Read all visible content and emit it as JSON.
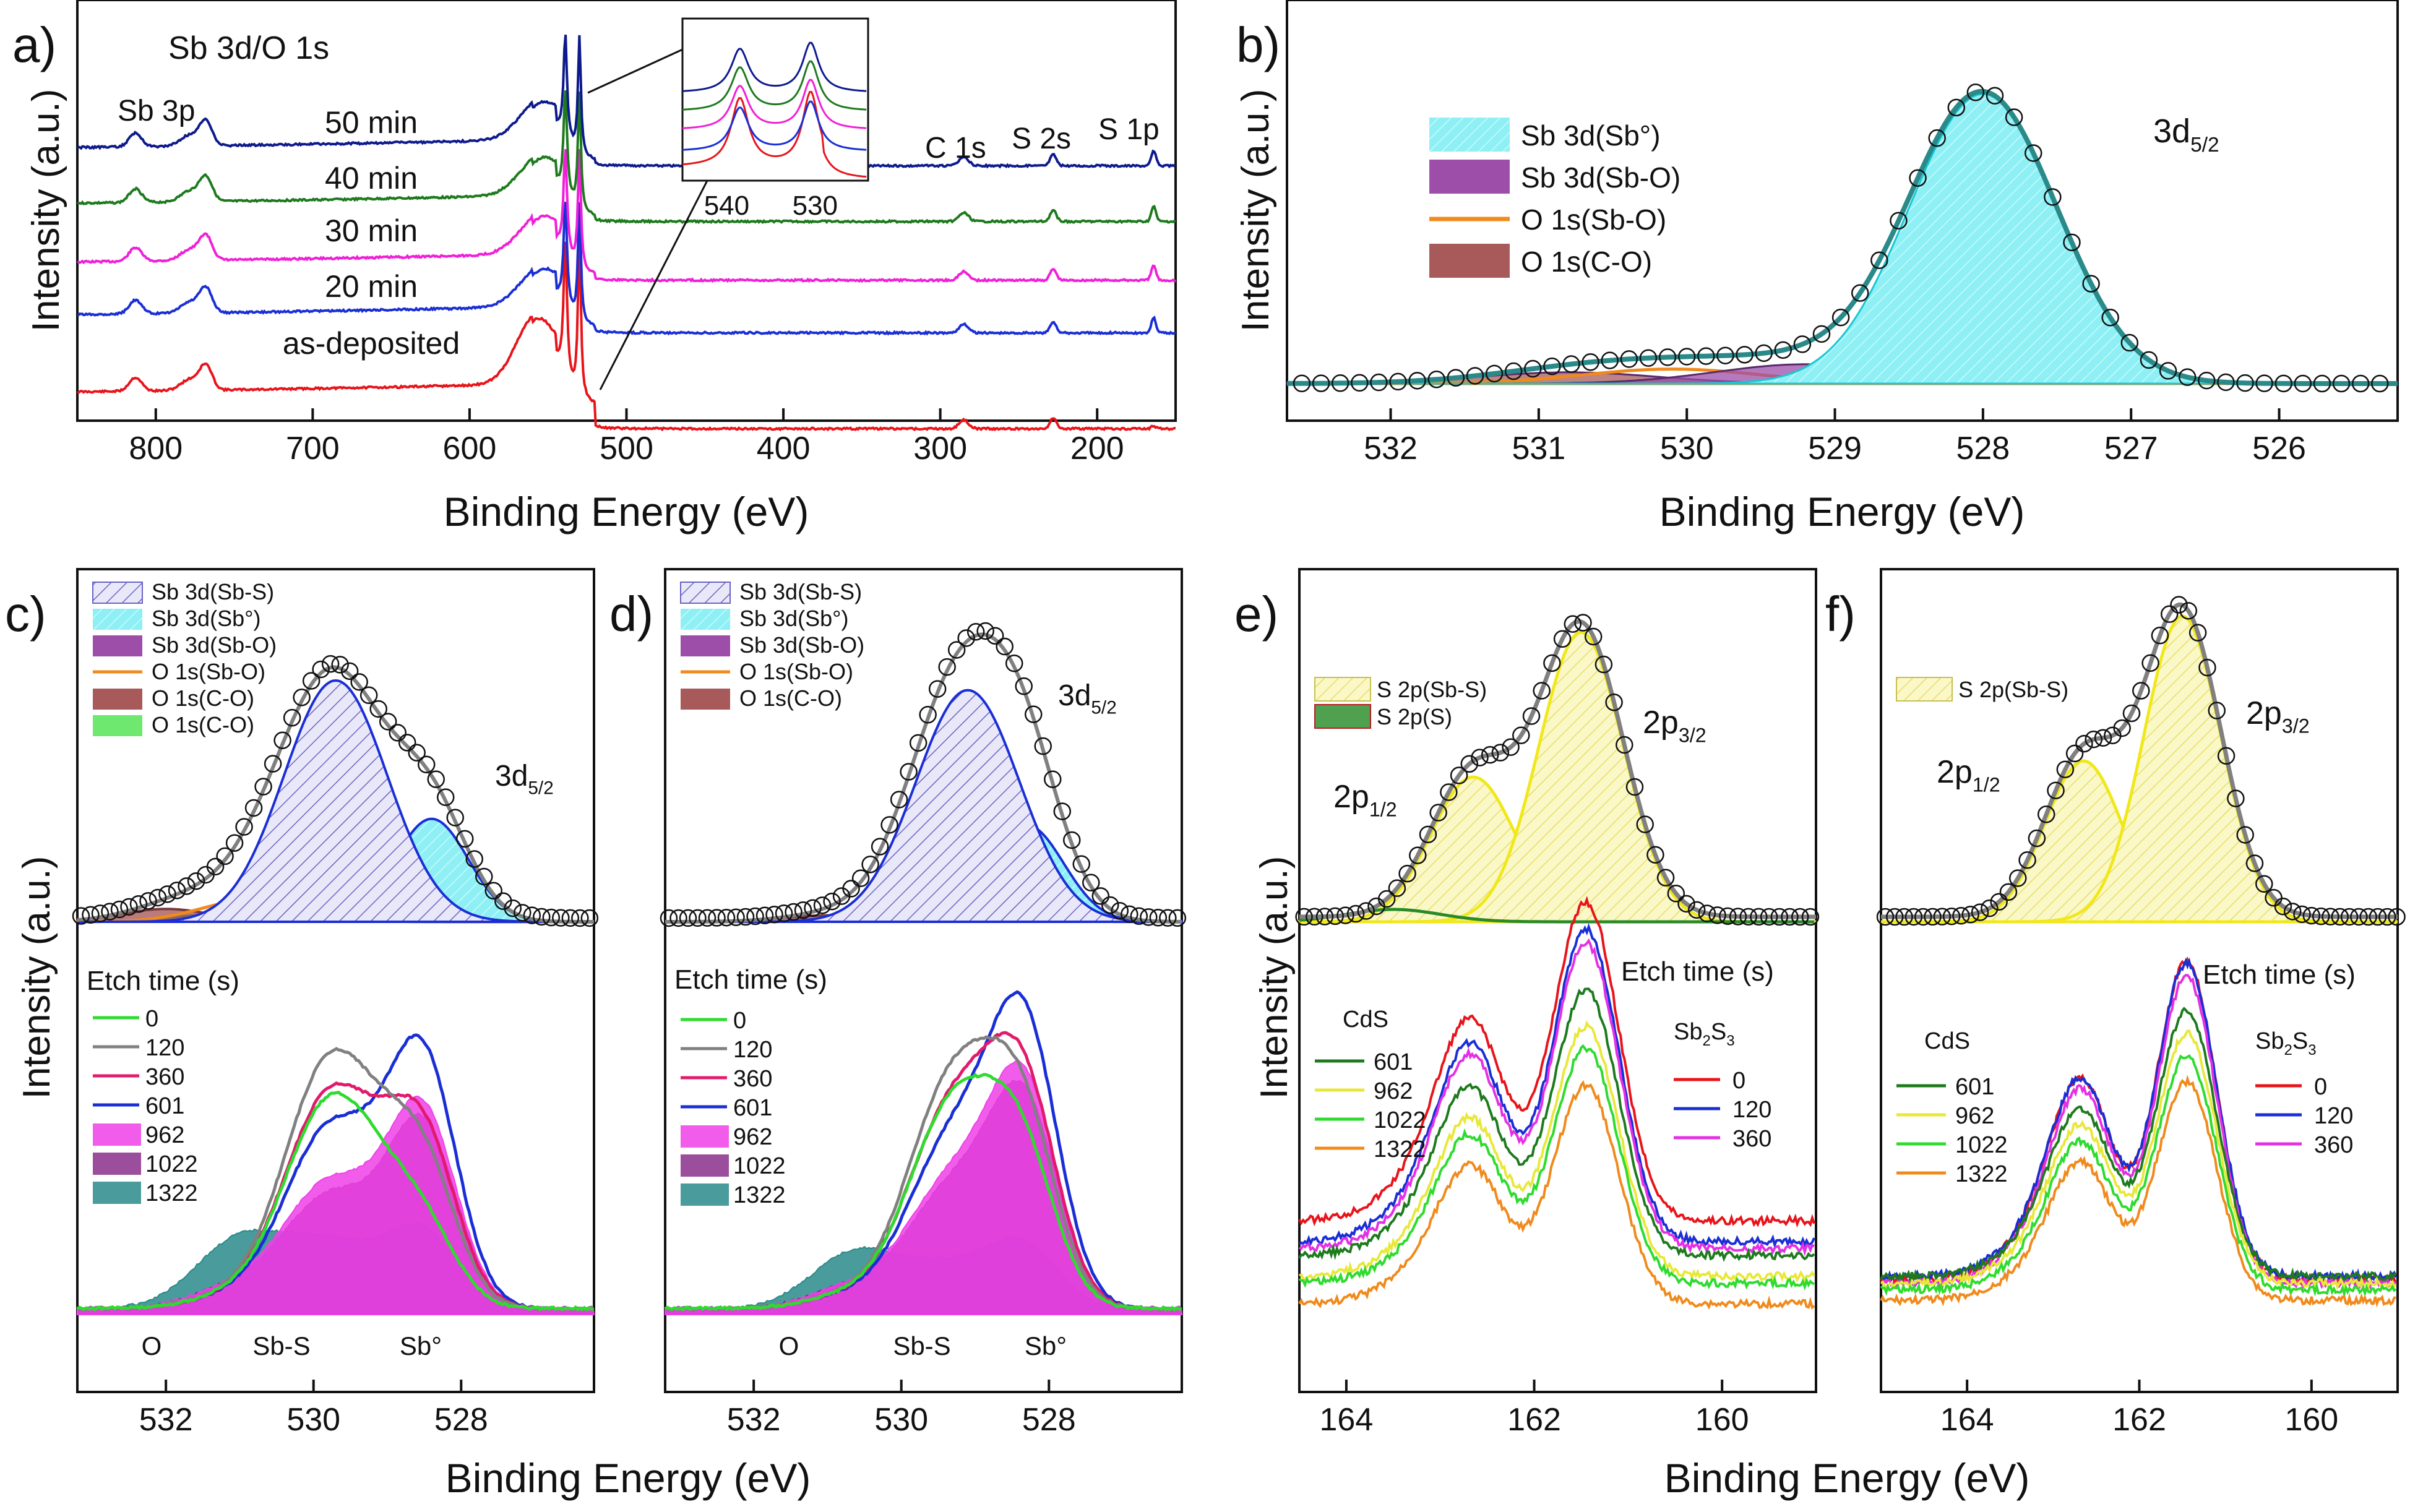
{
  "figure": {
    "common_xlabel": "Binding Energy (eV)",
    "common_ylabel": "Intensity (a.u.)"
  },
  "chart_data": [
    {
      "panel": "a)",
      "type": "line",
      "title": "Sb 3d/O 1s",
      "xlabel": "Binding Energy (eV)",
      "ylabel": "Intensity (a.u.)",
      "xlim": [
        850,
        150
      ],
      "xticks": [
        800,
        700,
        600,
        500,
        400,
        300,
        200
      ],
      "series": [
        {
          "name": "as-deposited",
          "color": "#e8141a",
          "offset": 0,
          "sharp": 0.5
        },
        {
          "name": "20 min",
          "color": "#1a2ed6",
          "offset": 1.3,
          "sharp": 0.3
        },
        {
          "name": "30 min",
          "color": "#f01fd8",
          "offset": 2.4,
          "sharp": 0.4
        },
        {
          "name": "40 min",
          "color": "#1d7a1d",
          "offset": 3.6,
          "sharp": 0.5
        },
        {
          "name": "50 min",
          "color": "#0d1a8c",
          "offset": 4.8,
          "sharp": 0.6
        }
      ],
      "labels": {
        "peaks": [
          "Sb 3p",
          "C 1s",
          "S 2s",
          "S 1p"
        ]
      },
      "inset": {
        "xticks": [
          540,
          530
        ]
      }
    },
    {
      "panel": "b)",
      "type": "area",
      "xlabel": "Binding Energy (eV)",
      "ylabel": "Intensity (a.u.)",
      "xlim": [
        532.7,
        525.2
      ],
      "xticks": [
        532,
        531,
        530,
        529,
        528,
        527,
        526
      ],
      "peak_label": "3d",
      "peak_sub": "5/2",
      "legend": [
        {
          "label": "Sb 3d(Sb°)",
          "color": "#7fe9ee",
          "center": 528.0,
          "height": 0.9,
          "width": 0.5
        },
        {
          "label": "Sb 3d(Sb-O)",
          "color": "#9c4ea8",
          "center": 529.2,
          "height": 0.06,
          "width": 0.6
        },
        {
          "label": "O 1s(Sb-O)",
          "color": "#f08a1c",
          "center": 530.1,
          "height": 0.045,
          "width": 0.6
        },
        {
          "label": "O 1s(C-O)",
          "color": "#a85a5a",
          "center": 530.8,
          "height": 0.035,
          "width": 0.6
        }
      ]
    },
    {
      "panel": "c)",
      "type": "area",
      "xlabel": "",
      "ylabel": "",
      "xlim": [
        533.2,
        526.2
      ],
      "xticks": [
        532,
        530,
        528
      ],
      "peak_label": "3d",
      "peak_sub": "5/2",
      "legend": [
        {
          "label": "Sb 3d(Sb-S)",
          "color": "#b9b6e6",
          "center": 529.7,
          "height": 0.75,
          "width": 0.7
        },
        {
          "label": "Sb 3d(Sb°)",
          "color": "#7fe9ee",
          "center": 528.4,
          "height": 0.32,
          "width": 0.5
        },
        {
          "label": "Sb 3d(Sb-O)",
          "color": "#9c4ea8",
          "center": 530.6,
          "height": 0.05,
          "width": 0.5
        },
        {
          "label": "O 1s(Sb-O)",
          "color": "#f08a1c",
          "center": 530.8,
          "height": 0.07,
          "width": 0.7
        },
        {
          "label": "O 1s(C-O)",
          "color": "#a85a5a",
          "center": 532.0,
          "height": 0.04,
          "width": 0.6
        },
        {
          "label": "O 1s(C-O)",
          "color": "#6fe86f",
          "center": 531.5,
          "height": 0.02,
          "width": 0.5
        }
      ],
      "etch_title": "Etch time (s)",
      "etch_series": [
        {
          "name": "0",
          "color": "#2edb2e",
          "kind": "line",
          "h": [
            0.05,
            0.6,
            0.25
          ]
        },
        {
          "name": "120",
          "color": "#808080",
          "kind": "line",
          "h": [
            0.05,
            0.72,
            0.45
          ]
        },
        {
          "name": "360",
          "color": "#e21a6c",
          "kind": "line",
          "h": [
            0.05,
            0.62,
            0.55
          ]
        },
        {
          "name": "601",
          "color": "#1a2ed6",
          "kind": "line",
          "h": [
            0.05,
            0.52,
            0.82
          ]
        },
        {
          "name": "962",
          "color": "#f040e8",
          "kind": "fill",
          "h": [
            0.08,
            0.36,
            0.65
          ]
        },
        {
          "name": "1022",
          "color": "#8a2f8a",
          "kind": "fill",
          "h": [
            0.08,
            0.32,
            0.6
          ]
        },
        {
          "name": "1322",
          "color": "#2a8a8a",
          "kind": "fill",
          "h": [
            0.24,
            0.18,
            0.25
          ]
        }
      ],
      "region_labels": [
        "O",
        "Sb-S",
        "Sb°"
      ]
    },
    {
      "panel": "d)",
      "type": "area",
      "xlabel": "",
      "ylabel": "",
      "xlim": [
        533.2,
        526.2
      ],
      "xticks": [
        532,
        530,
        528
      ],
      "peak_label": "3d",
      "peak_sub": "5/2",
      "legend": [
        {
          "label": "Sb 3d(Sb-S)",
          "color": "#b9b6e6",
          "center": 529.1,
          "height": 0.72,
          "width": 0.7
        },
        {
          "label": "Sb 3d(Sb°)",
          "color": "#7fe9ee",
          "center": 528.3,
          "height": 0.3,
          "width": 0.5
        },
        {
          "label": "Sb 3d(Sb-O)",
          "color": "#9c4ea8",
          "center": 529.6,
          "height": 0.04,
          "width": 0.5
        },
        {
          "label": "O 1s(Sb-O)",
          "color": "#f08a1c",
          "center": 529.4,
          "height": 0.05,
          "width": 0.8
        },
        {
          "label": "O 1s(C-O)",
          "color": "#a85a5a",
          "center": 531.0,
          "height": 0.02,
          "width": 0.6
        }
      ],
      "etch_title": "Etch time (s)",
      "etch_series": [
        {
          "name": "0",
          "color": "#2edb2e",
          "kind": "line",
          "h": [
            0.05,
            0.6,
            0.35
          ]
        },
        {
          "name": "120",
          "color": "#808080",
          "kind": "line",
          "h": [
            0.05,
            0.68,
            0.45
          ]
        },
        {
          "name": "360",
          "color": "#e21a6c",
          "kind": "line",
          "h": [
            0.05,
            0.6,
            0.58
          ]
        },
        {
          "name": "601",
          "color": "#1a2ed6",
          "kind": "line",
          "h": [
            0.05,
            0.5,
            0.82
          ]
        },
        {
          "name": "962",
          "color": "#f040e8",
          "kind": "fill",
          "h": [
            0.08,
            0.38,
            0.65
          ]
        },
        {
          "name": "1022",
          "color": "#8a2f8a",
          "kind": "fill",
          "h": [
            0.08,
            0.35,
            0.6
          ]
        },
        {
          "name": "1322",
          "color": "#2a8a8a",
          "kind": "fill",
          "h": [
            0.2,
            0.12,
            0.18
          ]
        }
      ],
      "region_labels": [
        "O",
        "Sb-S",
        "Sb°"
      ]
    },
    {
      "panel": "e)",
      "type": "area",
      "xlabel": "",
      "ylabel": "",
      "xlim": [
        164.5,
        159.0
      ],
      "xticks": [
        164,
        162,
        160
      ],
      "p12": "2p",
      "p12_sub": "1/2",
      "p32": "2p",
      "p32_sub": "3/2",
      "legend": [
        {
          "label": "S 2p(Sb-S)",
          "color": "#f5f29a"
        },
        {
          "label": "S 2p(S)",
          "color": "#4fa04f"
        }
      ],
      "components": [
        {
          "center": 162.65,
          "height": 0.45,
          "width": 0.45
        },
        {
          "center": 161.5,
          "height": 0.9,
          "width": 0.45
        }
      ],
      "etch_title": "Etch time (s)",
      "group_left": "CdS",
      "group_right_main": "Sb",
      "group_right_sub1": "2",
      "group_right_mid": "S",
      "group_right_sub2": "3",
      "cds_series": [
        {
          "name": "601",
          "color": "#1d7a1d",
          "base": 0.18
        },
        {
          "name": "962",
          "color": "#e8e83a",
          "base": 0.12
        },
        {
          "name": "1022",
          "color": "#2edb2e",
          "base": 0.1
        },
        {
          "name": "1322",
          "color": "#f08a1c",
          "base": 0.04
        }
      ],
      "sbs_series": [
        {
          "name": "0",
          "color": "#e8141a",
          "base": 0.28
        },
        {
          "name": "120",
          "color": "#1a2ed6",
          "base": 0.22
        },
        {
          "name": "360",
          "color": "#e430e4",
          "base": 0.2
        }
      ]
    },
    {
      "panel": "f)",
      "type": "area",
      "xlabel": "",
      "ylabel": "",
      "xlim": [
        165.0,
        159.0
      ],
      "xticks": [
        164,
        162,
        160
      ],
      "p12": "2p",
      "p12_sub": "1/2",
      "p32": "2p",
      "p32_sub": "3/2",
      "legend": [
        {
          "label": "S 2p(Sb-S)",
          "color": "#f5f29a"
        }
      ],
      "components": [
        {
          "center": 162.65,
          "height": 0.5,
          "width": 0.45
        },
        {
          "center": 161.5,
          "height": 0.95,
          "width": 0.45
        }
      ],
      "etch_title": "Etch time (s)",
      "group_left": "CdS",
      "group_right_main": "Sb",
      "group_right_sub1": "2",
      "group_right_mid": "S",
      "group_right_sub2": "3",
      "cds_series": [
        {
          "name": "601",
          "color": "#1d7a1d",
          "base": 0.12
        },
        {
          "name": "962",
          "color": "#e8e83a",
          "base": 0.1
        },
        {
          "name": "1022",
          "color": "#2edb2e",
          "base": 0.08
        },
        {
          "name": "1322",
          "color": "#f08a1c",
          "base": 0.05
        }
      ],
      "sbs_series": [
        {
          "name": "0",
          "color": "#e8141a",
          "base": 0.11
        },
        {
          "name": "120",
          "color": "#1a2ed6",
          "base": 0.12
        },
        {
          "name": "360",
          "color": "#e430e4",
          "base": 0.1
        }
      ]
    }
  ]
}
